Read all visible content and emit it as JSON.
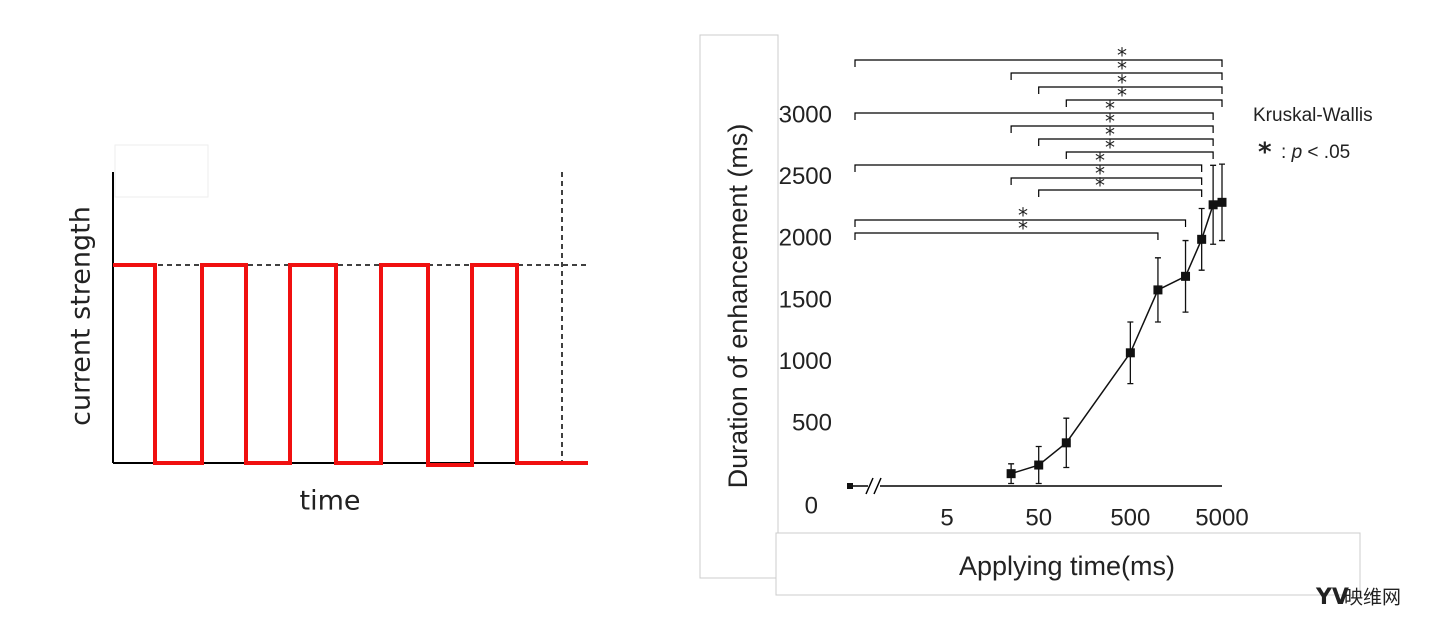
{
  "schematic": {
    "y_label": "current strength",
    "x_label": "time"
  },
  "chart_data": {
    "type": "line",
    "y_label": "Duration of enhancement (ms)",
    "x_label": "Applying time(ms)",
    "x": [
      0,
      25,
      50,
      100,
      500,
      1000,
      2000,
      3000,
      4000,
      5000
    ],
    "series": [
      {
        "color": "#111111",
        "values": [
          0,
          100,
          170,
          350,
          1080,
          1590,
          1700,
          2000,
          2280,
          2300
        ],
        "errors": [
          null,
          80,
          150,
          200,
          250,
          260,
          290,
          250,
          320,
          310
        ]
      }
    ],
    "log_x": true,
    "xlim": [
      1,
      5000
    ],
    "xticks": [
      5,
      50,
      500,
      5000
    ],
    "ylim": [
      0,
      3000
    ],
    "yticks": [
      0,
      500,
      1000,
      1500,
      2000,
      2500,
      3000
    ],
    "grid": false,
    "significance": [
      {
        "from": 0,
        "to": 5000,
        "label": "*"
      },
      {
        "from": 25,
        "to": 5000,
        "label": "*"
      },
      {
        "from": 50,
        "to": 5000,
        "label": "*"
      },
      {
        "from": 100,
        "to": 5000,
        "label": "*"
      },
      {
        "from": 0,
        "to": 4000,
        "label": "*"
      },
      {
        "from": 25,
        "to": 4000,
        "label": "*"
      },
      {
        "from": 50,
        "to": 4000,
        "label": "*"
      },
      {
        "from": 100,
        "to": 4000,
        "label": "*"
      },
      {
        "from": 0,
        "to": 3000,
        "label": "*"
      },
      {
        "from": 25,
        "to": 3000,
        "label": "*"
      },
      {
        "from": 50,
        "to": 3000,
        "label": "*"
      },
      {
        "from": 0,
        "to": 2000,
        "label": "*"
      },
      {
        "from": 0,
        "to": 1000,
        "label": "*"
      }
    ],
    "annotation": {
      "title": "Kruskal-Wallis",
      "symbol": "*",
      "sep": ":",
      "p": "p",
      "threshold": "< .05"
    }
  },
  "watermark": "映维网"
}
